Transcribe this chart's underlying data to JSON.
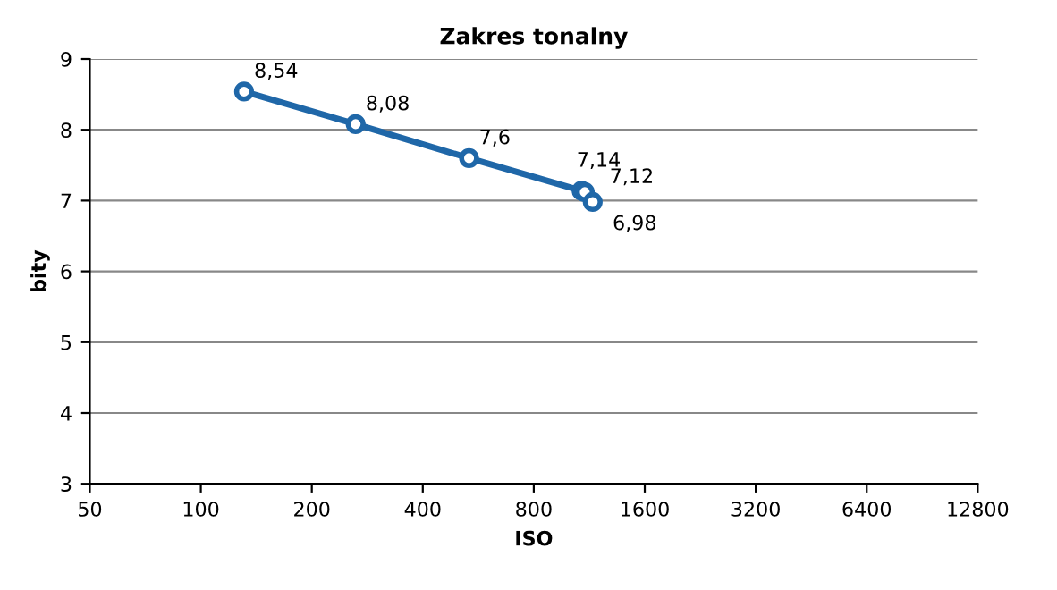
{
  "chart_data": {
    "type": "line",
    "title": "Zakres tonalny",
    "xlabel": "ISO",
    "ylabel": "bity",
    "x": [
      131,
      263,
      534,
      1078,
      1100,
      1156
    ],
    "series": [
      {
        "color": "#1f67a8",
        "values": [
          8.54,
          8.08,
          7.6,
          7.14,
          7.12,
          6.98
        ],
        "value_labels": [
          "8,54",
          "8,08",
          "7,6",
          "7,14",
          "7,12",
          "6,98"
        ]
      }
    ],
    "log": "x",
    "xlim": [
      50,
      12800
    ],
    "xticks": [
      50,
      100,
      200,
      400,
      800,
      1600,
      3200,
      6400,
      12800
    ],
    "ylim": [
      3,
      9
    ],
    "yticks": [
      3,
      4,
      5,
      6,
      7,
      8,
      9
    ],
    "grid": "y",
    "marker": "circle",
    "line_style": "solid"
  }
}
